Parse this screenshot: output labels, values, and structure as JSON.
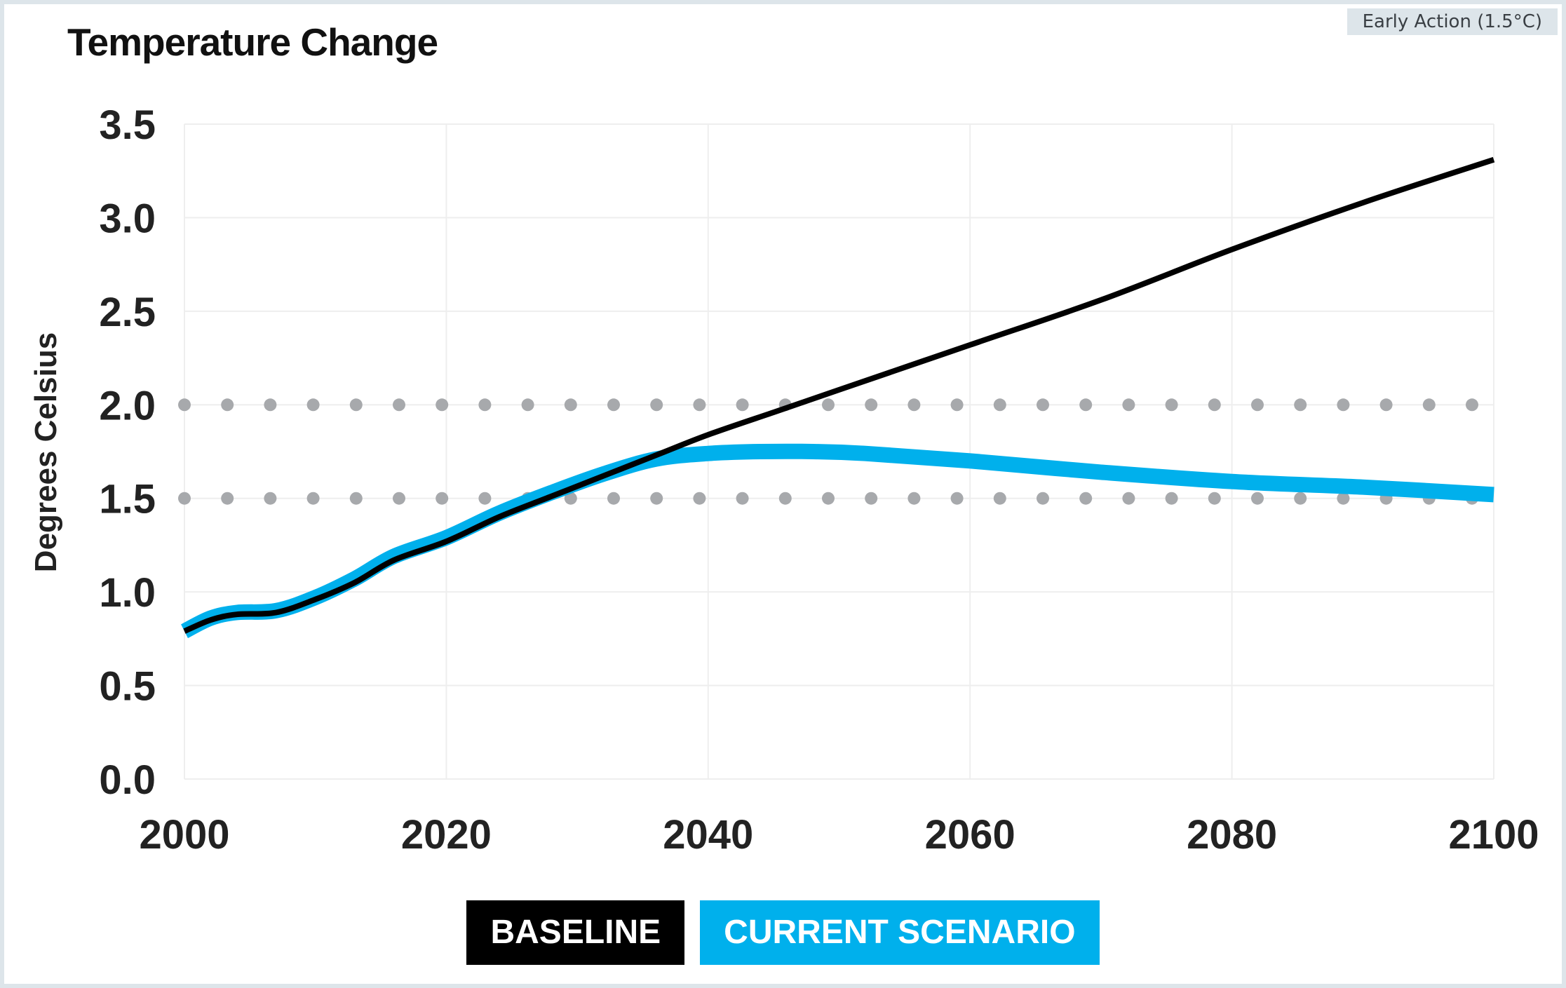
{
  "scenario_tag": "Early Action (1.5°C)",
  "colors": {
    "baseline": "#000000",
    "current": "#00b0ec",
    "threshold": "#a7a9ac",
    "grid": "#eeeeee"
  },
  "chart_data": {
    "type": "line",
    "title": "Temperature Change",
    "xlabel": "",
    "ylabel": "Degrees Celsius",
    "xlim": [
      2000,
      2100
    ],
    "ylim": [
      0,
      3.5
    ],
    "x_ticks": [
      "2000",
      "2020",
      "2040",
      "2060",
      "2080",
      "2100"
    ],
    "y_ticks": [
      "0.0",
      "0.5",
      "1.0",
      "1.5",
      "2.0",
      "2.5",
      "3.0",
      "3.5"
    ],
    "thresholds": [
      1.5,
      2.0
    ],
    "legend_position": "bottom-center",
    "series": [
      {
        "name": "BASELINE",
        "color": "#000000",
        "x": [
          2000,
          2002,
          2004,
          2007,
          2010,
          2013,
          2016,
          2020,
          2024,
          2028,
          2032,
          2036,
          2040,
          2045,
          2050,
          2060,
          2070,
          2080,
          2090,
          2100
        ],
        "y": [
          0.79,
          0.85,
          0.88,
          0.89,
          0.96,
          1.05,
          1.17,
          1.27,
          1.4,
          1.51,
          1.62,
          1.73,
          1.84,
          1.96,
          2.08,
          2.32,
          2.56,
          2.83,
          3.08,
          3.31
        ]
      },
      {
        "name": "CURRENT SCENARIO",
        "color": "#00b0ec",
        "x": [
          2000,
          2002,
          2004,
          2007,
          2010,
          2013,
          2016,
          2020,
          2024,
          2028,
          2032,
          2036,
          2040,
          2044,
          2048,
          2052,
          2060,
          2070,
          2080,
          2090,
          2100
        ],
        "y": [
          0.79,
          0.86,
          0.89,
          0.9,
          0.97,
          1.07,
          1.19,
          1.29,
          1.42,
          1.53,
          1.63,
          1.71,
          1.74,
          1.75,
          1.75,
          1.74,
          1.7,
          1.64,
          1.59,
          1.56,
          1.52
        ]
      }
    ]
  }
}
